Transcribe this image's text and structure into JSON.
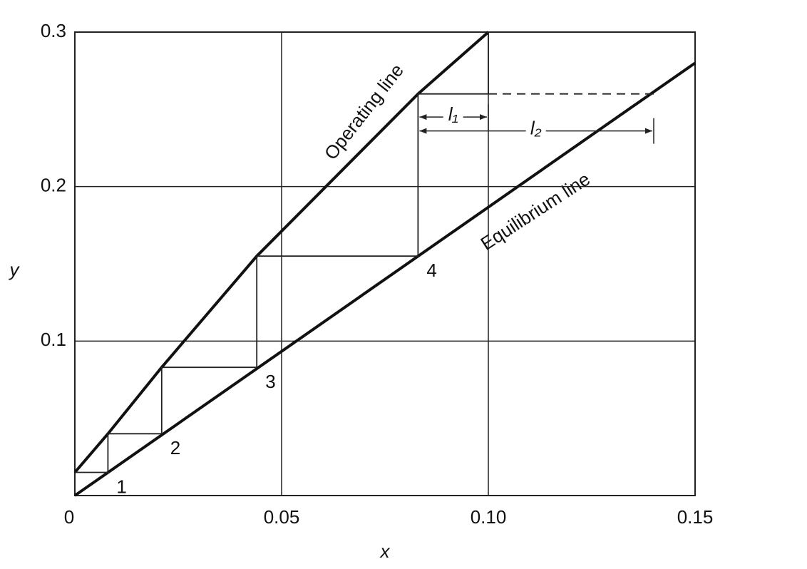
{
  "chart_data": {
    "type": "line",
    "xlabel": "x",
    "ylabel": "y",
    "xlim": [
      0,
      0.15
    ],
    "ylim": [
      0,
      0.3
    ],
    "xticks": [
      {
        "value": 0,
        "label": "0"
      },
      0.05,
      {
        "value": 0.1,
        "label": "0.10"
      },
      0.15
    ],
    "yticks": [
      0.1,
      0.2,
      0.3
    ],
    "grid": true,
    "series": [
      {
        "name": "Operating line",
        "color": "#111111",
        "x": [
          0,
          0.008,
          0.021,
          0.044,
          0.083,
          0.1
        ],
        "values": [
          0.015,
          0.04,
          0.083,
          0.155,
          0.26,
          0.3
        ]
      },
      {
        "name": "Equilibrium line",
        "color": "#111111",
        "x": [
          0,
          0.15
        ],
        "values": [
          0,
          0.28
        ]
      }
    ],
    "steps": {
      "x": [
        0,
        0.008,
        0.008,
        0.021,
        0.021,
        0.044,
        0.044,
        0.083,
        0.083,
        0.1,
        0.1
      ],
      "y": [
        0.015,
        0.015,
        0.04,
        0.04,
        0.083,
        0.083,
        0.155,
        0.155,
        0.26,
        0.26,
        0.3
      ]
    },
    "extension": {
      "x": [
        0.1,
        0.14
      ],
      "y": [
        0.26,
        0.26
      ]
    },
    "stage_labels": [
      {
        "label": "1",
        "x": 0.008,
        "y": 0.015
      },
      {
        "label": "2",
        "x": 0.021,
        "y": 0.04
      },
      {
        "label": "3",
        "x": 0.044,
        "y": 0.083
      },
      {
        "label": "4",
        "x": 0.083,
        "y": 0.155
      }
    ],
    "dimensions": [
      {
        "label": "l₁",
        "x": [
          0.083,
          0.1
        ],
        "y": 0.245
      },
      {
        "label": "l₂",
        "x": [
          0.083,
          0.14
        ],
        "y": 0.236
      }
    ]
  }
}
